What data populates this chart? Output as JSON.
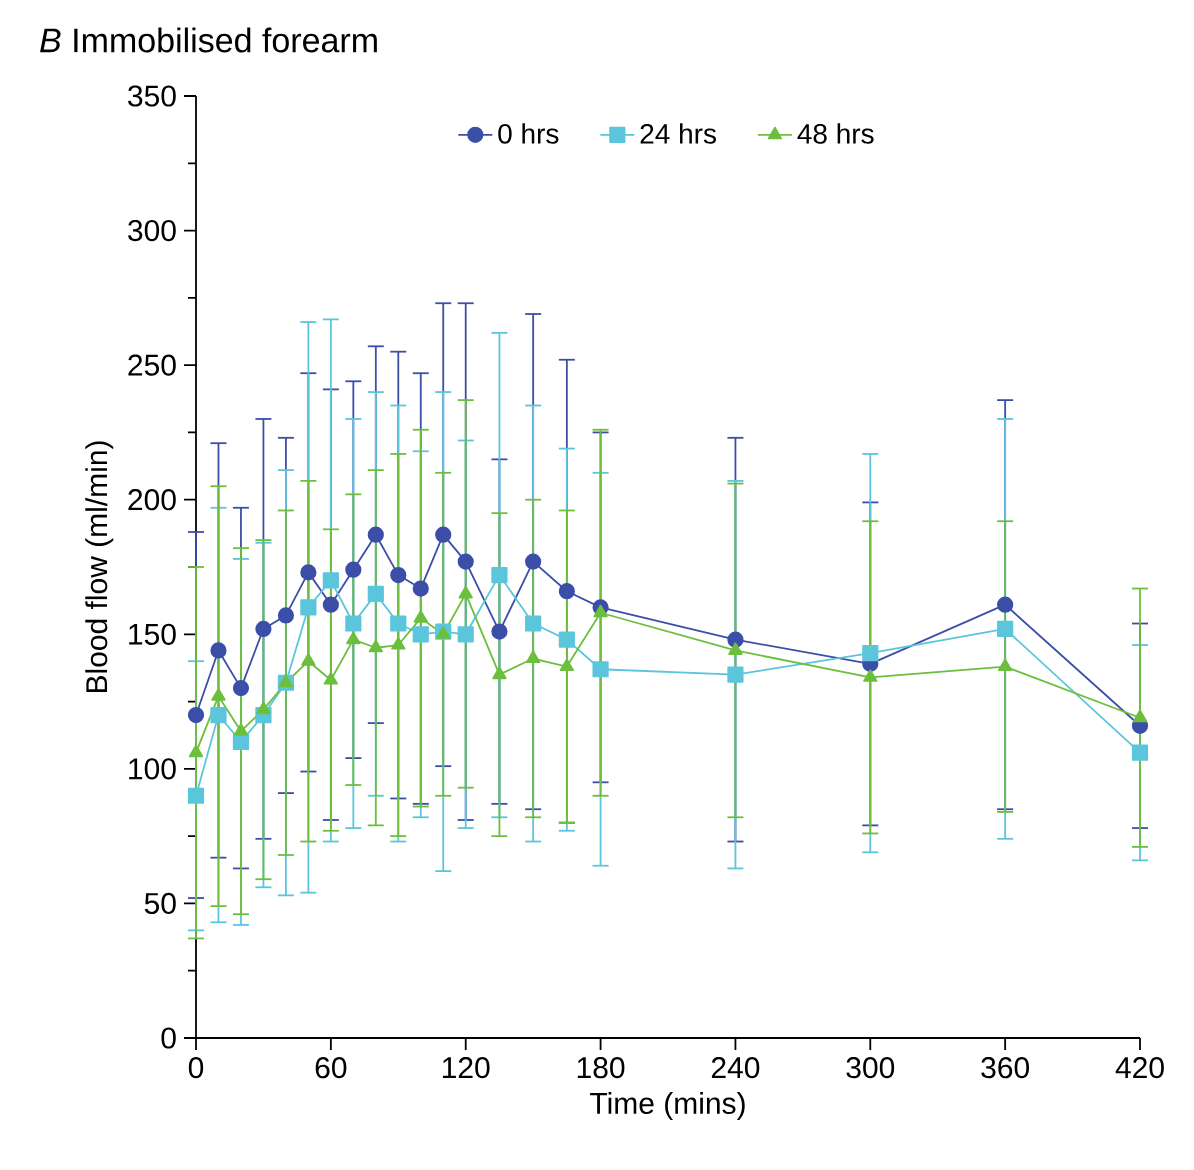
{
  "chart_data": {
    "type": "line",
    "title": "*B* Immobilised forearm",
    "xlabel": "Time (mins)",
    "ylabel": "Blood flow (ml/min)",
    "x": [
      0,
      10,
      20,
      30,
      40,
      50,
      60,
      70,
      80,
      90,
      100,
      110,
      120,
      135,
      150,
      165,
      180,
      240,
      300,
      360,
      420
    ],
    "series": [
      {
        "name": "0 hrs",
        "color": "#3b4ea8",
        "marker": "circle",
        "values": [
          120,
          144,
          130,
          152,
          157,
          173,
          161,
          174,
          187,
          172,
          167,
          187,
          177,
          151,
          177,
          166,
          160,
          148,
          139,
          161,
          116
        ],
        "errors": [
          68,
          77,
          67,
          78,
          66,
          74,
          80,
          70,
          70,
          83,
          80,
          86,
          96,
          64,
          92,
          86,
          65,
          75,
          60,
          76,
          38
        ]
      },
      {
        "name": "24 hrs",
        "color": "#5bc5dc",
        "marker": "square",
        "values": [
          90,
          120,
          110,
          120,
          132,
          160,
          170,
          154,
          165,
          154,
          150,
          151,
          150,
          172,
          154,
          148,
          137,
          135,
          143,
          152,
          106
        ],
        "errors": [
          50,
          77,
          68,
          64,
          79,
          106,
          97,
          76,
          75,
          81,
          68,
          89,
          72,
          90,
          81,
          71,
          73,
          72,
          74,
          78,
          40
        ]
      },
      {
        "name": "48 hrs",
        "color": "#6cbf3c",
        "marker": "triangle",
        "values": [
          106,
          127,
          114,
          122,
          132,
          140,
          133,
          148,
          145,
          146,
          156,
          150,
          165,
          135,
          141,
          138,
          158,
          144,
          134,
          138,
          119
        ],
        "errors": [
          69,
          78,
          68,
          63,
          64,
          67,
          56,
          54,
          66,
          71,
          70,
          60,
          72,
          60,
          59,
          58,
          68,
          62,
          58,
          54,
          48
        ]
      }
    ],
    "xlim": [
      0,
      420
    ],
    "xticks": [
      0,
      60,
      120,
      180,
      240,
      300,
      360,
      420
    ],
    "ylim": [
      0,
      350
    ],
    "yticks": [
      0,
      50,
      100,
      150,
      200,
      250,
      300,
      350
    ],
    "legend": "top",
    "grid": false,
    "line_style": "solid"
  }
}
